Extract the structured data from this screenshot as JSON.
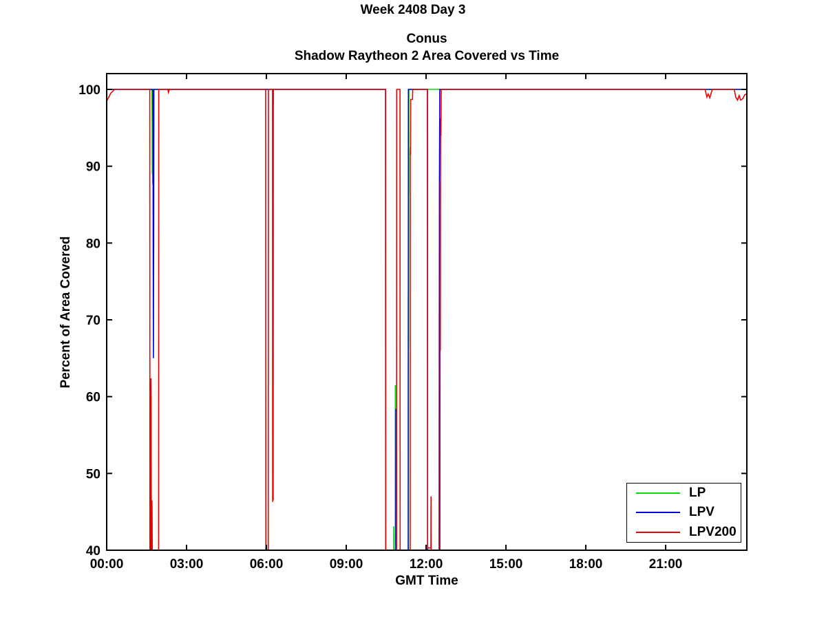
{
  "figure": {
    "suptitle": "Week 2408 Day 3",
    "title_line1": "Conus",
    "title_line2": "Shadow Raytheon 2 Area Covered vs Time"
  },
  "axes": {
    "xlabel": "GMT Time",
    "ylabel": "Percent of Area Covered"
  },
  "legend": {
    "entries": [
      {
        "label": "LP",
        "color": "#00dd00"
      },
      {
        "label": "LPV",
        "color": "#0000e0"
      },
      {
        "label": "LPV200",
        "color": "#ee0000"
      }
    ]
  },
  "chart_data": {
    "type": "line",
    "suptitle": "Week 2408 Day 3",
    "title": "Conus / Shadow Raytheon 2 Area Covered vs Time",
    "xlabel": "GMT Time",
    "ylabel": "Percent of Area Covered",
    "xlim": [
      0,
      24.05
    ],
    "ylim": [
      40,
      102.06
    ],
    "grid": false,
    "legend_position": "bottom-right",
    "xticks": [
      {
        "value": 0,
        "label": "00:00"
      },
      {
        "value": 3,
        "label": "03:00"
      },
      {
        "value": 6,
        "label": "06:00"
      },
      {
        "value": 9,
        "label": "09:00"
      },
      {
        "value": 12,
        "label": "12:00"
      },
      {
        "value": 15,
        "label": "15:00"
      },
      {
        "value": 18,
        "label": "18:00"
      },
      {
        "value": 21,
        "label": "21:00"
      }
    ],
    "yticks": [
      40,
      50,
      60,
      70,
      80,
      90,
      100
    ],
    "series": [
      {
        "name": "LP",
        "color": "#00dd00",
        "points": [
          [
            0,
            100
          ],
          [
            1.7,
            100
          ],
          [
            1.71,
            95.5
          ],
          [
            1.715,
            89
          ],
          [
            1.72,
            96.7
          ],
          [
            1.725,
            91.5
          ],
          [
            1.73,
            87.7
          ],
          [
            1.735,
            93
          ],
          [
            1.74,
            88.5
          ],
          [
            1.745,
            96
          ],
          [
            1.76,
            100
          ],
          [
            10.478,
            100
          ],
          [
            10.48,
            38
          ],
          [
            10.78,
            38
          ],
          [
            10.785,
            43.1
          ],
          [
            10.79,
            38
          ],
          [
            10.84,
            38
          ],
          [
            10.843,
            61.5
          ],
          [
            10.847,
            54.8
          ],
          [
            10.85,
            46
          ],
          [
            10.853,
            38
          ],
          [
            11.33,
            38
          ],
          [
            11.333,
            73.2
          ],
          [
            11.336,
            66.3
          ],
          [
            11.34,
            73
          ],
          [
            11.344,
            89
          ],
          [
            11.348,
            86.3
          ],
          [
            11.353,
            100
          ],
          [
            24.05,
            100
          ]
        ]
      },
      {
        "name": "LPV",
        "color": "#0000e0",
        "points": [
          [
            0,
            100
          ],
          [
            1.73,
            100
          ],
          [
            1.74,
            95
          ],
          [
            1.745,
            80.3
          ],
          [
            1.75,
            71.5
          ],
          [
            1.755,
            65
          ],
          [
            1.76,
            75.5
          ],
          [
            1.765,
            80
          ],
          [
            1.775,
            100
          ],
          [
            6.25,
            100
          ],
          [
            6.255,
            98.5
          ],
          [
            6.26,
            100
          ],
          [
            10.478,
            100
          ],
          [
            10.48,
            38
          ],
          [
            10.86,
            38
          ],
          [
            10.863,
            58.4
          ],
          [
            10.868,
            49.2
          ],
          [
            10.872,
            38
          ],
          [
            11.33,
            38
          ],
          [
            11.335,
            100
          ],
          [
            12.05,
            100
          ],
          [
            12.055,
            38
          ],
          [
            12.49,
            38
          ],
          [
            12.5,
            88.1
          ],
          [
            12.515,
            100
          ],
          [
            24.05,
            100
          ]
        ]
      },
      {
        "name": "LPV200",
        "color": "#ee0000",
        "points": [
          [
            0,
            98.5
          ],
          [
            0.05,
            98.8
          ],
          [
            0.15,
            99.5
          ],
          [
            0.3,
            100
          ],
          [
            1.62,
            100
          ],
          [
            1.625,
            38
          ],
          [
            1.655,
            38
          ],
          [
            1.66,
            60
          ],
          [
            1.665,
            62.4
          ],
          [
            1.67,
            60
          ],
          [
            1.675,
            38
          ],
          [
            1.695,
            38
          ],
          [
            1.7,
            46.5
          ],
          [
            1.705,
            45.6
          ],
          [
            1.71,
            42
          ],
          [
            1.715,
            38
          ],
          [
            1.95,
            38
          ],
          [
            1.955,
            100
          ],
          [
            2.3,
            100
          ],
          [
            2.32,
            99.6
          ],
          [
            2.36,
            100
          ],
          [
            5.97,
            100
          ],
          [
            5.975,
            78
          ],
          [
            5.98,
            38
          ],
          [
            6.07,
            38
          ],
          [
            6.075,
            100
          ],
          [
            6.23,
            100
          ],
          [
            6.235,
            46.3
          ],
          [
            6.24,
            53.5
          ],
          [
            6.245,
            47
          ],
          [
            6.25,
            54
          ],
          [
            6.255,
            46.5
          ],
          [
            6.262,
            100
          ],
          [
            10.475,
            100
          ],
          [
            10.48,
            38
          ],
          [
            10.89,
            38
          ],
          [
            10.895,
            100
          ],
          [
            11.02,
            100
          ],
          [
            11.025,
            38
          ],
          [
            11.4,
            38
          ],
          [
            11.405,
            91.5
          ],
          [
            11.41,
            92.5
          ],
          [
            11.415,
            91.5
          ],
          [
            11.42,
            98.7
          ],
          [
            11.49,
            98.7
          ],
          [
            11.497,
            100
          ],
          [
            12.05,
            100
          ],
          [
            12.055,
            40.3
          ],
          [
            12.18,
            40.3
          ],
          [
            12.185,
            47
          ],
          [
            12.19,
            40.3
          ],
          [
            12.195,
            38
          ],
          [
            12.52,
            38
          ],
          [
            12.525,
            66
          ],
          [
            12.53,
            88
          ],
          [
            12.535,
            66
          ],
          [
            12.54,
            88
          ],
          [
            12.545,
            94
          ],
          [
            12.55,
            96.2
          ],
          [
            12.555,
            94
          ],
          [
            12.56,
            96
          ],
          [
            12.568,
            100
          ],
          [
            22.48,
            100
          ],
          [
            22.55,
            99.0
          ],
          [
            22.6,
            99.4
          ],
          [
            22.66,
            98.9
          ],
          [
            22.75,
            100
          ],
          [
            23.58,
            100
          ],
          [
            23.63,
            99.0
          ],
          [
            23.7,
            98.6
          ],
          [
            23.76,
            99.2
          ],
          [
            23.82,
            98.6
          ],
          [
            23.9,
            98.8
          ],
          [
            23.97,
            99.3
          ],
          [
            24.05,
            99.4
          ]
        ]
      }
    ]
  }
}
